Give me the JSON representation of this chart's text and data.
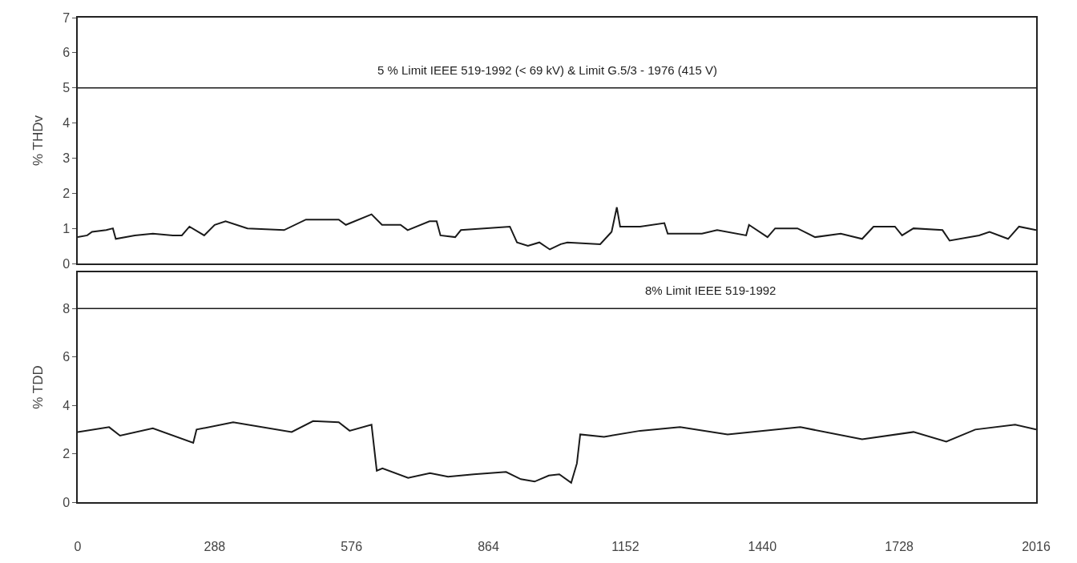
{
  "chart_data": [
    {
      "type": "line",
      "ylabel": "% THDv",
      "xlim": [
        0,
        2016
      ],
      "xticks": [
        0,
        288,
        576,
        864,
        1152,
        1440,
        1728,
        2016
      ],
      "ylim": [
        0,
        7
      ],
      "yticks": [
        0,
        1,
        2,
        3,
        4,
        5,
        6,
        7
      ],
      "tick_labels": "y",
      "x": [
        0,
        20,
        30,
        60,
        74,
        80,
        120,
        158,
        200,
        219,
        235,
        266,
        288,
        311,
        357,
        434,
        480,
        549,
        564,
        618,
        640,
        679,
        694,
        740,
        755,
        763,
        794,
        806,
        909,
        924,
        947,
        971,
        993,
        1016,
        1030,
        1099,
        1123,
        1134,
        1141,
        1183,
        1234,
        1241,
        1313,
        1345,
        1406,
        1412,
        1451,
        1467,
        1514,
        1551,
        1605,
        1650,
        1674,
        1719,
        1734,
        1758,
        1819,
        1834,
        1896,
        1918,
        1957,
        1980,
        2016
      ],
      "series": [
        {
          "color": "#1a1a1a",
          "values": [
            0.75,
            0.8,
            0.9,
            0.95,
            1.0,
            0.7,
            0.8,
            0.85,
            0.8,
            0.8,
            1.05,
            0.8,
            1.1,
            1.2,
            1.0,
            0.95,
            1.25,
            1.25,
            1.1,
            1.4,
            1.1,
            1.1,
            0.95,
            1.2,
            1.2,
            0.8,
            0.75,
            0.95,
            1.05,
            0.6,
            0.5,
            0.6,
            0.4,
            0.55,
            0.6,
            0.55,
            0.9,
            1.6,
            1.05,
            1.05,
            1.15,
            0.85,
            0.85,
            0.95,
            0.8,
            1.1,
            0.75,
            1.0,
            1.0,
            0.75,
            0.85,
            0.7,
            1.05,
            1.05,
            0.8,
            1.0,
            0.95,
            0.65,
            0.8,
            0.9,
            0.7,
            1.05,
            0.95
          ]
        }
      ],
      "ref_lines": [
        {
          "axis": "y",
          "value": 5,
          "label": "5 % Limit IEEE 519-1992 (< 69 kV) & Limit G.5/3 - 1976 (415 V)",
          "color": "#1a1a1a"
        }
      ]
    },
    {
      "type": "line",
      "ylabel": "% TDD",
      "xlim": [
        0,
        2016
      ],
      "xticks": [
        0,
        288,
        576,
        864,
        1152,
        1440,
        1728,
        2016
      ],
      "ylim": [
        0,
        9.5
      ],
      "yticks": [
        0,
        2,
        4,
        6,
        8
      ],
      "x": [
        0,
        66,
        89,
        158,
        243,
        250,
        327,
        450,
        495,
        549,
        572,
        618,
        629,
        641,
        695,
        741,
        779,
        833,
        901,
        932,
        961,
        991,
        1013,
        1038,
        1050,
        1057,
        1107,
        1183,
        1267,
        1367,
        1520,
        1650,
        1758,
        1827,
        1888,
        1972,
        2016
      ],
      "series": [
        {
          "color": "#1a1a1a",
          "values": [
            2.9,
            3.1,
            2.75,
            3.05,
            2.45,
            3.0,
            3.3,
            2.9,
            3.35,
            3.3,
            2.95,
            3.2,
            1.3,
            1.4,
            1.0,
            1.2,
            1.05,
            1.15,
            1.25,
            0.95,
            0.85,
            1.1,
            1.15,
            0.8,
            1.6,
            2.8,
            2.7,
            2.95,
            3.1,
            2.8,
            3.1,
            2.6,
            2.9,
            2.5,
            3.0,
            3.2,
            3.0
          ]
        }
      ],
      "ref_lines": [
        {
          "axis": "y",
          "value": 8,
          "label": "8% Limit IEEE 519-1992",
          "color": "#1a1a1a"
        }
      ]
    }
  ]
}
